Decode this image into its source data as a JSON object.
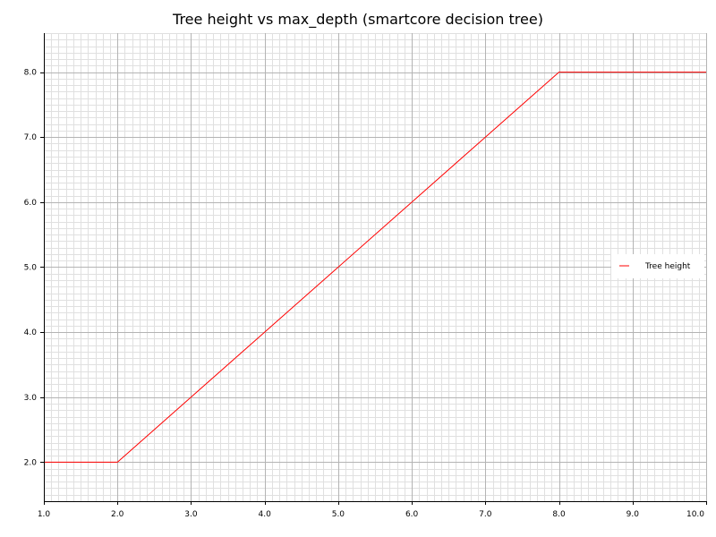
{
  "chart_data": {
    "type": "line",
    "title": "Tree height vs max_depth (smartcore decision tree)",
    "xlabel": "",
    "ylabel": "",
    "xlim": [
      1.0,
      10.0
    ],
    "ylim": [
      1.4,
      8.6
    ],
    "x_ticks": [
      "1.0",
      "2.0",
      "3.0",
      "4.0",
      "5.0",
      "6.0",
      "7.0",
      "8.0",
      "9.0",
      "10.0"
    ],
    "y_ticks": [
      "2.0",
      "3.0",
      "4.0",
      "5.0",
      "6.0",
      "7.0",
      "8.0"
    ],
    "grid": true,
    "legend_position": "right",
    "series": [
      {
        "name": "Tree height",
        "color": "#ff0000",
        "x": [
          1,
          2,
          3,
          4,
          5,
          6,
          7,
          8,
          9,
          10
        ],
        "y": [
          2,
          2,
          3,
          4,
          5,
          6,
          7,
          8,
          8,
          8
        ]
      }
    ]
  }
}
